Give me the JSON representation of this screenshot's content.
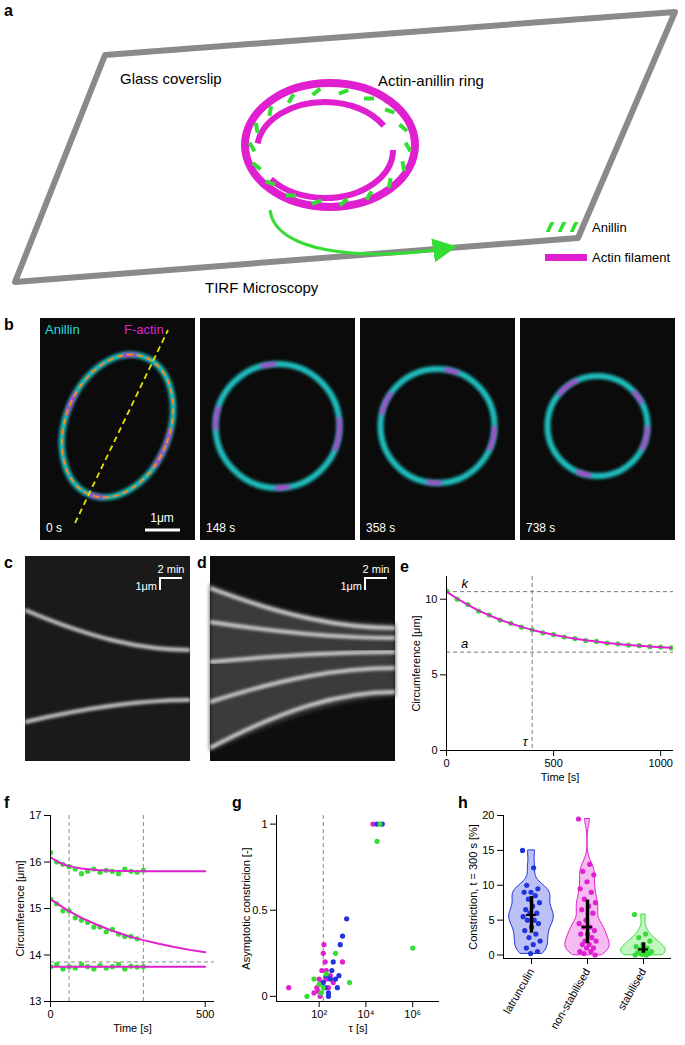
{
  "panel_labels": [
    "a",
    "b",
    "c",
    "d",
    "e",
    "f",
    "g",
    "h"
  ],
  "diagram": {
    "coverslip": "Glass coverslip",
    "ring": "Actin-anillin ring",
    "microscopy": "TIRF Microscopy",
    "legend": [
      {
        "label": "Anillin",
        "color": "#33dd33"
      },
      {
        "label": "Actin filament",
        "color": "#e020d0"
      }
    ]
  },
  "micrographs": {
    "channels": [
      {
        "label": "Anillin",
        "color": "#22dddd"
      },
      {
        "label": "F-actin",
        "color": "#e020d0"
      }
    ],
    "timestamps": [
      "0 s",
      "148 s",
      "358 s",
      "738 s"
    ],
    "scale_bar": "1μm"
  },
  "kymographs": [
    {
      "time_bar": "2 min",
      "scale_bar": "1μm"
    },
    {
      "time_bar": "2 min",
      "scale_bar": "1μm"
    }
  ],
  "chart_data": [
    {
      "type": "scatter",
      "xlabel": "Time [s]",
      "ylabel": "Circumference [μm]",
      "xlim": [
        0,
        1060
      ],
      "ylim": [
        0,
        11.5
      ],
      "xticks": [
        0,
        500,
        1000
      ],
      "yticks": [
        0,
        5,
        10
      ],
      "series": [
        {
          "type": "scatter",
          "color": "#33dd33",
          "x": [
            0,
            50,
            100,
            150,
            200,
            250,
            300,
            350,
            400,
            450,
            500,
            550,
            600,
            650,
            700,
            750,
            800,
            850,
            900,
            950,
            1000,
            1050
          ],
          "values": [
            10.55,
            10.0,
            9.65,
            9.22,
            8.95,
            8.62,
            8.41,
            8.15,
            7.98,
            7.78,
            7.66,
            7.5,
            7.4,
            7.27,
            7.21,
            7.1,
            7.05,
            6.97,
            6.93,
            6.86,
            6.84,
            6.78
          ]
        },
        {
          "type": "line",
          "color": "#e020d0",
          "x": [
            0,
            50,
            100,
            150,
            200,
            250,
            300,
            350,
            400,
            450,
            500,
            550,
            600,
            650,
            700,
            750,
            800,
            850,
            900,
            950,
            1000,
            1050
          ],
          "values": [
            10.5,
            10.03,
            9.62,
            9.25,
            8.93,
            8.64,
            8.39,
            8.17,
            7.97,
            7.8,
            7.65,
            7.51,
            7.39,
            7.29,
            7.2,
            7.11,
            7.04,
            6.98,
            6.92,
            6.87,
            6.83,
            6.79
          ]
        }
      ],
      "annotations": [
        {
          "text": "k",
          "y": 10.5
        },
        {
          "text": "a",
          "y": 6.5
        },
        {
          "text": "τ",
          "x": 400
        }
      ]
    },
    {
      "type": "scatter",
      "xlabel": "Time [s]",
      "ylabel": "Circumference [μm]",
      "xlim": [
        0,
        530
      ],
      "ylim": [
        13,
        17
      ],
      "xticks": [
        0,
        500
      ],
      "yticks": [
        13,
        14,
        15,
        16,
        17
      ],
      "reference_lines": {
        "x": [
          60,
          300
        ],
        "y": [
          13.85
        ]
      },
      "series": [
        {
          "type": "scatter",
          "color": "#33dd33",
          "x": [
            0,
            20,
            40,
            60,
            80,
            100,
            120,
            140,
            160,
            180,
            200,
            220,
            240,
            260,
            280,
            300
          ],
          "values": [
            16.2,
            16.0,
            15.95,
            15.9,
            15.85,
            15.75,
            15.8,
            15.85,
            15.78,
            15.82,
            15.8,
            15.75,
            15.85,
            15.8,
            15.78,
            15.82
          ]
        },
        {
          "type": "scatter",
          "color": "#33dd33",
          "x": [
            0,
            20,
            40,
            60,
            80,
            100,
            120,
            140,
            160,
            180,
            200,
            220,
            240,
            260,
            280
          ],
          "values": [
            15.2,
            15.1,
            14.95,
            14.95,
            14.8,
            14.75,
            14.7,
            14.6,
            14.6,
            14.5,
            14.55,
            14.45,
            14.4,
            14.4,
            14.35
          ]
        },
        {
          "type": "scatter",
          "color": "#33dd33",
          "x": [
            0,
            20,
            40,
            60,
            80,
            100,
            120,
            140,
            160,
            180,
            200,
            220,
            240,
            260,
            280,
            300
          ],
          "values": [
            13.75,
            13.8,
            13.7,
            13.75,
            13.72,
            13.8,
            13.75,
            13.7,
            13.78,
            13.72,
            13.75,
            13.8,
            13.7,
            13.76,
            13.74,
            13.75
          ]
        },
        {
          "type": "line",
          "color": "#e020d0",
          "x": [
            0,
            25,
            50,
            75,
            100,
            150,
            200,
            300,
            400,
            500
          ],
          "values": [
            16.1,
            16.0,
            15.93,
            15.89,
            15.86,
            15.83,
            15.81,
            15.8,
            15.8,
            15.8
          ]
        },
        {
          "type": "line",
          "color": "#e020d0",
          "x": [
            0,
            50,
            100,
            150,
            200,
            250,
            300,
            350,
            400,
            450,
            500
          ],
          "values": [
            15.2,
            14.98,
            14.8,
            14.65,
            14.52,
            14.41,
            14.32,
            14.24,
            14.17,
            14.11,
            14.06
          ]
        },
        {
          "type": "line",
          "color": "#e020d0",
          "x": [
            0,
            500
          ],
          "values": [
            13.75,
            13.75
          ]
        }
      ]
    },
    {
      "type": "scatter",
      "log": "x",
      "xlabel": "τ [s]",
      "ylabel": "Asymptotic constricion [-]",
      "xlim": [
        1.5,
        14000000
      ],
      "ylim": [
        -0.03,
        1.05
      ],
      "xticks": [
        {
          "value": 100,
          "label": "10²"
        },
        {
          "value": 10000,
          "label": "10⁴"
        },
        {
          "value": 1000000,
          "label": "10⁶"
        }
      ],
      "yticks": [
        0,
        0.5,
        1
      ],
      "reference_lines": {
        "x": [
          150
        ]
      },
      "series": [
        {
          "type": "scatter",
          "color": "#e020d0",
          "x": [
            5,
            60,
            80,
            100,
            110,
            120,
            130,
            150,
            160,
            180,
            200,
            200,
            250,
            300,
            400,
            1000,
            20000,
            90
          ],
          "values": [
            0.05,
            0.02,
            0.05,
            0.1,
            0.0,
            0.08,
            0.15,
            0.25,
            0.3,
            0.2,
            0.15,
            0.1,
            0.05,
            0.12,
            0.08,
            0.2,
            1,
            0.03
          ]
        },
        {
          "type": "scatter",
          "color": "#2233dd",
          "x": [
            200,
            250,
            250,
            300,
            350,
            400,
            500,
            600,
            700,
            800,
            1000,
            1500,
            30000,
            50000,
            150,
            180
          ],
          "values": [
            0.12,
            0.0,
            0.02,
            0.1,
            0.15,
            0.2,
            0.1,
            0.05,
            0.12,
            0.3,
            0.35,
            0.45,
            1,
            1,
            0.08,
            0.05
          ]
        },
        {
          "type": "scatter",
          "color": "#33dd33",
          "x": [
            30,
            60,
            100,
            120,
            150,
            200,
            500,
            2000,
            30000,
            40000,
            1000000
          ],
          "values": [
            0.0,
            0.1,
            0.07,
            0.02,
            0.05,
            0.13,
            0.25,
            0.08,
            0.9,
            1,
            0.28
          ]
        }
      ]
    },
    {
      "type": "violin",
      "ylabel": "Constriction, t = 300 s [%]",
      "categories": [
        "latrunculin",
        "non-stabilised",
        "stabilised"
      ],
      "colors": [
        "#2233dd",
        "#e020d0",
        "#33dd33"
      ],
      "ylim": [
        -0.5,
        20
      ],
      "yticks": [
        0,
        5,
        10,
        15,
        20
      ],
      "values": [
        [
          15,
          12.5,
          10,
          9.5,
          9,
          9,
          8.5,
          8,
          7.5,
          7,
          6.5,
          6,
          6,
          5.5,
          5,
          5,
          4.5,
          4,
          3.5,
          3,
          2.5,
          2,
          1.5,
          1,
          0.5,
          0.2
        ],
        [
          19.5,
          13,
          12,
          11.5,
          10.5,
          9.5,
          9,
          8,
          7.5,
          7,
          6.5,
          6,
          5,
          4.5,
          4,
          4,
          3.5,
          3,
          3,
          2.5,
          2,
          2,
          1.5,
          1.5,
          1,
          1,
          0.5,
          0.5,
          0.2,
          0
        ],
        [
          5.8,
          3,
          2.5,
          2,
          1.5,
          1.2,
          1,
          0.8,
          0.5,
          0.5,
          0.3,
          0.2,
          0.1,
          0,
          0
        ]
      ]
    }
  ]
}
